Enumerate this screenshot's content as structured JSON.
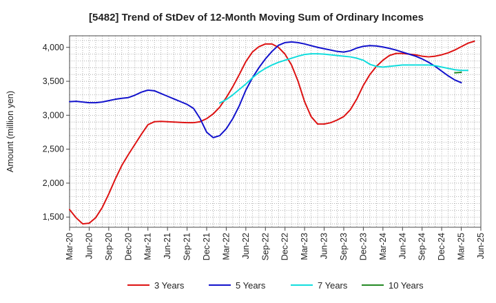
{
  "chart_data": {
    "type": "line",
    "title": "[5482]  Trend of StDev of 12-Month Moving Sum of Ordinary Incomes",
    "xlabel": "",
    "ylabel": "Amount (million yen)",
    "ylim": [
      1350,
      4170
    ],
    "yticks": [
      1500,
      2000,
      2500,
      3000,
      3500,
      4000
    ],
    "ytick_labels": [
      "1,500",
      "2,000",
      "2,500",
      "3,000",
      "3,500",
      "4,000"
    ],
    "x_start": "Mar-20",
    "x_months_total": 63,
    "x_tick_labels": [
      "Mar-20",
      "Jun-20",
      "Sep-20",
      "Dec-20",
      "Mar-21",
      "Jun-21",
      "Sep-21",
      "Dec-21",
      "Mar-22",
      "Jun-22",
      "Sep-22",
      "Dec-22",
      "Mar-23",
      "Jun-23",
      "Sep-23",
      "Dec-23",
      "Mar-24",
      "Jun-24",
      "Sep-24",
      "Dec-24",
      "Mar-25",
      "Jun-25"
    ],
    "grid": true,
    "legend_position": "bottom",
    "series": [
      {
        "name": "3 Years",
        "color": "#dd1111",
        "start": "Mar-20",
        "values": [
          1610,
          1490,
          1400,
          1410,
          1490,
          1640,
          1840,
          2060,
          2260,
          2420,
          2570,
          2720,
          2860,
          2905,
          2910,
          2905,
          2900,
          2895,
          2890,
          2890,
          2905,
          2950,
          3020,
          3120,
          3260,
          3420,
          3600,
          3790,
          3930,
          4010,
          4050,
          4050,
          4000,
          3900,
          3740,
          3500,
          3200,
          2980,
          2870,
          2870,
          2890,
          2930,
          2980,
          3080,
          3240,
          3440,
          3600,
          3720,
          3810,
          3880,
          3910,
          3910,
          3900,
          3890,
          3870,
          3860,
          3870,
          3890,
          3920,
          3960,
          4010,
          4060,
          4090
        ]
      },
      {
        "name": "5 Years",
        "color": "#1111cc",
        "start": "Mar-20",
        "values": [
          3200,
          3205,
          3195,
          3185,
          3185,
          3195,
          3215,
          3235,
          3250,
          3260,
          3295,
          3340,
          3370,
          3360,
          3320,
          3280,
          3240,
          3200,
          3160,
          3100,
          2950,
          2750,
          2670,
          2700,
          2800,
          2950,
          3140,
          3370,
          3550,
          3700,
          3830,
          3940,
          4030,
          4070,
          4080,
          4070,
          4050,
          4025,
          4000,
          3980,
          3960,
          3940,
          3930,
          3950,
          3990,
          4015,
          4025,
          4020,
          4005,
          3985,
          3960,
          3930,
          3900,
          3870,
          3830,
          3780,
          3720,
          3650,
          3580,
          3520,
          3480
        ]
      },
      {
        "name": "7 Years",
        "color": "#11dddd",
        "start": "Feb-22",
        "values": [
          3180,
          3230,
          3300,
          3380,
          3460,
          3550,
          3630,
          3690,
          3740,
          3780,
          3810,
          3840,
          3870,
          3895,
          3905,
          3905,
          3900,
          3890,
          3880,
          3870,
          3860,
          3840,
          3810,
          3750,
          3720,
          3710,
          3720,
          3730,
          3740,
          3740,
          3740,
          3740,
          3740,
          3730,
          3710,
          3690,
          3670,
          3660,
          3660
        ]
      },
      {
        "name": "10 Years",
        "color": "#228822",
        "start": "Feb-25",
        "values": [
          3625,
          3632
        ]
      }
    ]
  }
}
